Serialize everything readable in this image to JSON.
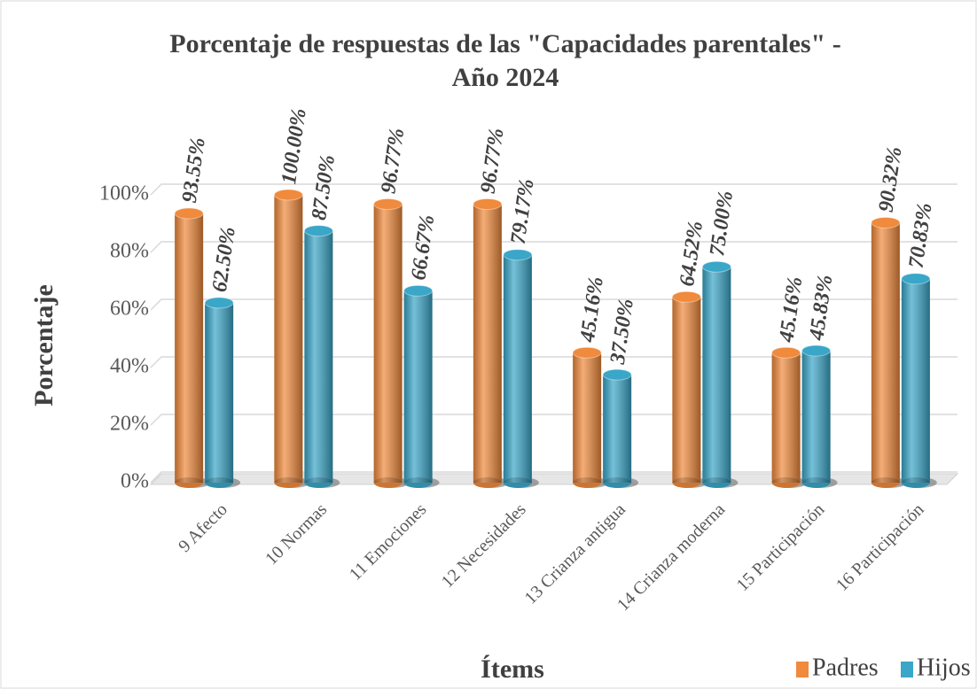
{
  "chart_data": {
    "type": "bar",
    "title": [
      "Porcentaje de respuestas de las \"Capacidades parentales\" -",
      "Año 2024"
    ],
    "xlabel": "Ítems",
    "ylabel": "Porcentaje",
    "categories": [
      "9 Afecto",
      "10 Normas",
      "11 Emociones",
      "12 Necesidades",
      "13 Crianza antigua",
      "14 Crianza moderna",
      "15 Participación",
      "16 Participación"
    ],
    "series": [
      {
        "name": "Padres",
        "color": "#f08a3c",
        "values": [
          93.55,
          100.0,
          96.77,
          96.77,
          45.16,
          64.52,
          45.16,
          90.32
        ],
        "value_labels": [
          "93.55%",
          "100.00%",
          "96.77%",
          "96.77%",
          "45.16%",
          "64.52%",
          "45.16%",
          "90.32%"
        ]
      },
      {
        "name": "Hijos",
        "color": "#3aa6c8",
        "values": [
          62.5,
          87.5,
          66.67,
          79.17,
          37.5,
          75.0,
          45.83,
          70.83
        ],
        "value_labels": [
          "62.50%",
          "87.50%",
          "66.67%",
          "79.17%",
          "37.50%",
          "75.00%",
          "45.83%",
          "70.83%"
        ]
      }
    ],
    "ylim": [
      0,
      100
    ],
    "yticks": [
      {
        "value": 0,
        "label": "0%"
      },
      {
        "value": 20,
        "label": "20%"
      },
      {
        "value": 40,
        "label": "40%"
      },
      {
        "value": 60,
        "label": "60%"
      },
      {
        "value": 80,
        "label": "80%"
      },
      {
        "value": 100,
        "label": "100%"
      }
    ],
    "grid": true,
    "legend": "bottom-right"
  }
}
